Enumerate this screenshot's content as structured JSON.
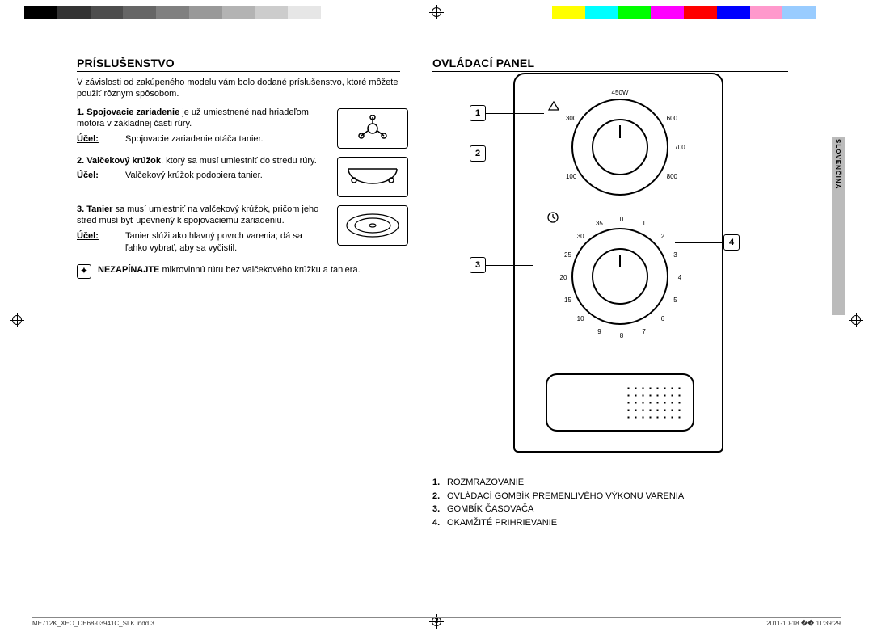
{
  "colorbar": {
    "colors": [
      "#000000",
      "#333333",
      "#4d4d4d",
      "#666666",
      "#808080",
      "#999999",
      "#b3b3b3",
      "#cccccc",
      "#e6e6e6",
      "#ffffff",
      "#ffffff",
      "#ffffff",
      "#ffffff",
      "#ffffff",
      "#ffffff",
      "#ffffff",
      "#ffff00",
      "#00ffff",
      "#00ff00",
      "#ff00ff",
      "#ff0000",
      "#0000ff",
      "#ff99cc",
      "#99ccff",
      "#ffffff"
    ]
  },
  "left": {
    "title": "PRÍSLUŠENSTVO",
    "intro": "V závislosti od zakúpeného modelu vám bolo dodané príslušenstvo, ktoré môžete použiť rôznym spôsobom.",
    "items": [
      {
        "num": "1.",
        "name": "Spojovacie zariadenie",
        "text": " je už umiestnené nad hriadeľom motora v základnej časti rúry.",
        "purpose_label": "Účel:",
        "purpose": "Spojovacie zariadenie otáča tanier."
      },
      {
        "num": "2.",
        "name": "Valčekový krúžok",
        "text": ", ktorý sa musí umiestniť do stredu rúry.",
        "purpose_label": "Účel:",
        "purpose": "Valčekový krúžok podopiera tanier."
      },
      {
        "num": "3.",
        "name": "Tanier",
        "text": " sa musí umiestniť na valčekový krúžok, pričom jeho stred musí byť upevnený k spojovaciemu zariadeniu.",
        "purpose_label": "Účel:",
        "purpose": "Tanier slúži ako hlavný povrch varenia; dá sa ľahko vybrať, aby sa vyčistil."
      }
    ],
    "note_bold": "NEZAPÍNAJTE",
    "note_rest": " mikrovlnnú rúru bez valčekového krúžku a taniera."
  },
  "right": {
    "title": "OVLÁDACÍ PANEL",
    "power_dial": {
      "top_label": "450W",
      "labels": [
        {
          "text": "300",
          "angle": -60
        },
        {
          "text": "600",
          "angle": 60
        },
        {
          "text": "100",
          "angle": -120
        },
        {
          "text": "700",
          "angle": 90
        },
        {
          "text": "800",
          "angle": 120
        }
      ]
    },
    "timer_dial": {
      "labels": [
        "0",
        "1",
        "2",
        "3",
        "4",
        "5",
        "6",
        "7",
        "8",
        "9",
        "10",
        "15",
        "20",
        "25",
        "30",
        "35"
      ]
    },
    "callouts": {
      "1": "1",
      "2": "2",
      "3": "3",
      "4": "4"
    },
    "legend": [
      {
        "n": "1.",
        "t": "ROZMRAZOVANIE"
      },
      {
        "n": "2.",
        "t": "OVLÁDACÍ GOMBÍK PREMENLIVÉHO VÝKONU VARENIA"
      },
      {
        "n": "3.",
        "t": "GOMBÍK ČASOVAČA"
      },
      {
        "n": "4.",
        "t": "OKAMŽITÉ PRIHRIEVANIE"
      }
    ]
  },
  "sidetab": "SLOVENČINA",
  "page_number": "3",
  "footer": {
    "file": "ME712K_XEO_DE68-03941C_SLK.indd   3",
    "stamp": "2011-10-18   �� 11:39:29"
  }
}
